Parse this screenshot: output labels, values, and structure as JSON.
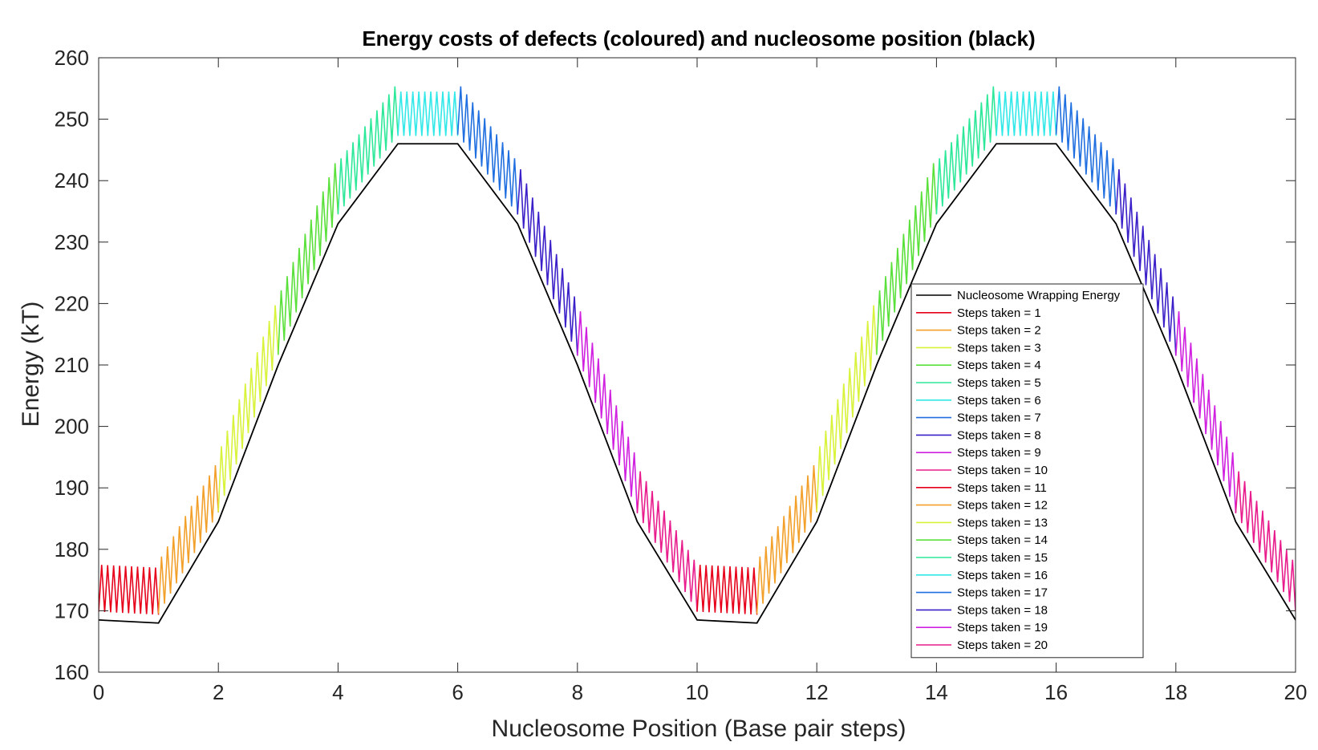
{
  "chart_data": {
    "type": "line",
    "title": "Energy costs of defects (coloured) and nucleosome position (black)",
    "xlabel": "Nucleosome Position (Base pair steps)",
    "ylabel": "Energy (kT)",
    "xlim": [
      0,
      20
    ],
    "ylim": [
      160,
      260
    ],
    "xticks": [
      0,
      2,
      4,
      6,
      8,
      10,
      12,
      14,
      16,
      18,
      20
    ],
    "yticks": [
      160,
      170,
      180,
      190,
      200,
      210,
      220,
      230,
      240,
      250,
      260
    ],
    "grid": false,
    "legend_position": "right-center",
    "wrapping_energy": {
      "name": "Nucleosome Wrapping Energy",
      "color": "#000000",
      "x": [
        0,
        1,
        2,
        3,
        4,
        5,
        6,
        7,
        8,
        9,
        10,
        11,
        12,
        13,
        14,
        15,
        16,
        17,
        18,
        19,
        20
      ],
      "y": [
        168.5,
        168.0,
        184.5,
        210.0,
        233.0,
        246.0,
        246.0,
        233.0,
        210.0,
        184.5,
        168.5,
        168.0,
        184.5,
        210.0,
        233.0,
        246.0,
        246.0,
        233.0,
        210.0,
        184.5,
        168.5
      ]
    },
    "defect_amplitude": [
      9,
      10,
      11,
      11,
      10,
      8.5,
      10,
      10,
      10,
      9,
      9,
      10,
      11,
      11,
      10,
      8.5,
      10,
      10,
      10,
      9
    ],
    "oscillations_per_step": 10,
    "series": [
      {
        "name": "Steps taken = 1",
        "color": "#e6001a"
      },
      {
        "name": "Steps taken = 2",
        "color": "#f2a02a"
      },
      {
        "name": "Steps taken = 3",
        "color": "#d9f23a"
      },
      {
        "name": "Steps taken = 4",
        "color": "#5ae03a"
      },
      {
        "name": "Steps taken = 5",
        "color": "#2ee89a"
      },
      {
        "name": "Steps taken = 6",
        "color": "#33e8e8"
      },
      {
        "name": "Steps taken = 7",
        "color": "#1f6fe0"
      },
      {
        "name": "Steps taken = 8",
        "color": "#3a20c8"
      },
      {
        "name": "Steps taken = 9",
        "color": "#d020e0"
      },
      {
        "name": "Steps taken = 10",
        "color": "#e81c8c"
      },
      {
        "name": "Steps taken = 11",
        "color": "#e6001a"
      },
      {
        "name": "Steps taken = 12",
        "color": "#f2a02a"
      },
      {
        "name": "Steps taken = 13",
        "color": "#d9f23a"
      },
      {
        "name": "Steps taken = 14",
        "color": "#5ae03a"
      },
      {
        "name": "Steps taken = 15",
        "color": "#2ee89a"
      },
      {
        "name": "Steps taken = 16",
        "color": "#33e8e8"
      },
      {
        "name": "Steps taken = 17",
        "color": "#1f6fe0"
      },
      {
        "name": "Steps taken = 18",
        "color": "#3a20c8"
      },
      {
        "name": "Steps taken = 19",
        "color": "#d020e0"
      },
      {
        "name": "Steps taken = 20",
        "color": "#e81c8c"
      }
    ]
  }
}
